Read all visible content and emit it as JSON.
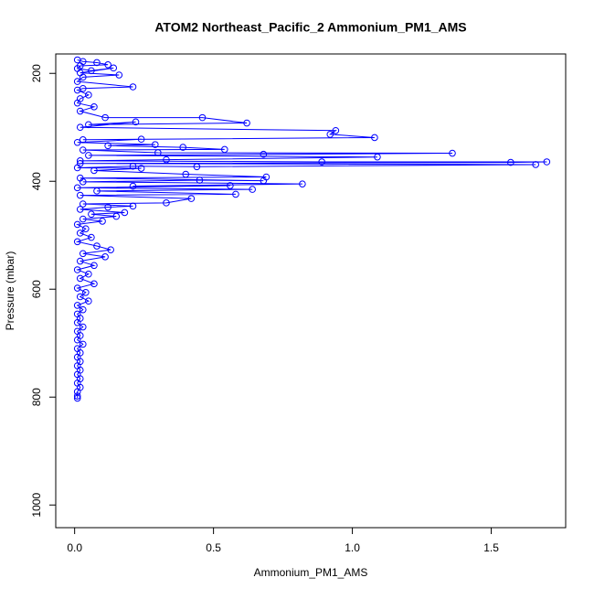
{
  "chart_data": {
    "type": "line",
    "title": "ATOM2 Northeast_Pacific_2 Ammonium_PM1_AMS",
    "x_label": "Ammonium_PM1_AMS",
    "y_label": "Pressure (mbar)",
    "xlim": [
      -0.068,
      1.768
    ],
    "ylim": [
      1042,
      164
    ],
    "xticks": [
      {
        "value": 0,
        "label": "0.0"
      },
      0.5,
      {
        "value": 1,
        "label": "1.0"
      },
      1.5
    ],
    "yticks": [
      200,
      400,
      600,
      800,
      1000
    ],
    "series": [
      {
        "color": "#0000ff",
        "x": [
          0.01,
          0.03,
          0.08,
          0.12,
          0.02,
          0.01,
          0.06,
          0.14,
          0.02,
          0.16,
          0.03,
          0.01,
          0.21,
          0.03,
          0.01,
          0.05,
          0.02,
          0.01,
          0.07,
          0.02,
          0.11,
          0.46,
          0.62,
          0.05,
          0.22,
          0.02,
          0.94,
          0.92,
          1.08,
          0.03,
          0.24,
          0.01,
          0.29,
          0.12,
          0.39,
          0.54,
          0.03,
          0.3,
          1.36,
          0.68,
          0.05,
          1.09,
          0.33,
          0.02,
          0.89,
          1.7,
          1.57,
          0.02,
          1.66,
          0.44,
          0.21,
          0.01,
          0.24,
          0.07,
          0.4,
          0.69,
          0.02,
          0.68,
          0.45,
          0.03,
          0.82,
          0.21,
          0.56,
          0.01,
          0.64,
          0.08,
          0.58,
          0.02,
          0.42,
          0.33,
          0.03,
          0.21,
          0.12,
          0.02,
          0.18,
          0.06,
          0.15,
          0.03,
          0.1,
          0.01,
          0.04,
          0.02,
          0.06,
          0.01,
          0.08,
          0.13,
          0.03,
          0.11,
          0.02,
          0.07,
          0.01,
          0.05,
          0.02,
          0.07,
          0.01,
          0.04,
          0.02,
          0.05,
          0.01,
          0.03,
          0.01,
          0.02,
          0.01,
          0.03,
          0.01,
          0.02,
          0.01,
          0.03,
          0.01,
          0.02,
          0.01,
          0.02,
          0.01,
          0.02,
          0.01,
          0.02,
          0.01,
          0.02,
          0.01,
          0.01,
          0.01
        ],
        "y": [
          175,
          178,
          180,
          184,
          186,
          191,
          195,
          190,
          199,
          203,
          207,
          215,
          225,
          228,
          231,
          240,
          247,
          255,
          262,
          270,
          282,
          282,
          292,
          295,
          290,
          300,
          306,
          313,
          319,
          323,
          322,
          328,
          332,
          334,
          337,
          341,
          342,
          347,
          348,
          350,
          352,
          355,
          360,
          362,
          364,
          364,
          365,
          367,
          369,
          373,
          372,
          375,
          376,
          380,
          387,
          392,
          394,
          399,
          398,
          401,
          405,
          409,
          408,
          412,
          415,
          418,
          424,
          426,
          432,
          440,
          442,
          446,
          448,
          452,
          458,
          461,
          465,
          470,
          474,
          480,
          488,
          496,
          504,
          512,
          520,
          527,
          534,
          540,
          548,
          556,
          564,
          572,
          580,
          590,
          598,
          606,
          614,
          622,
          630,
          638,
          646,
          654,
          662,
          670,
          678,
          686,
          694,
          702,
          710,
          718,
          726,
          734,
          742,
          750,
          758,
          766,
          774,
          782,
          790,
          798,
          802
        ]
      }
    ]
  }
}
